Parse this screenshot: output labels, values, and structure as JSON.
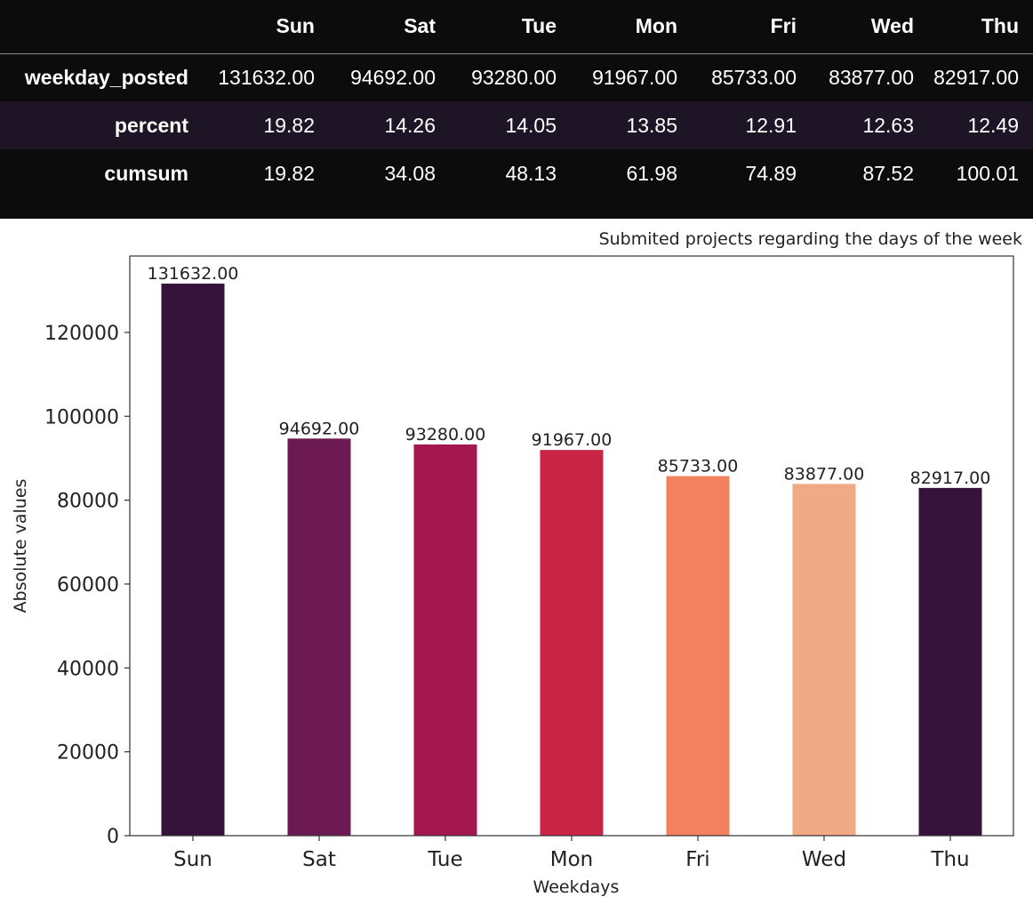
{
  "table": {
    "columns": [
      "Sun",
      "Sat",
      "Tue",
      "Mon",
      "Fri",
      "Wed",
      "Thu"
    ],
    "rows": [
      {
        "label": "weekday_posted",
        "values": [
          "131632.00",
          "94692.00",
          "93280.00",
          "91967.00",
          "85733.00",
          "83877.00",
          "82917.00"
        ]
      },
      {
        "label": "percent",
        "values": [
          "19.82",
          "14.26",
          "14.05",
          "13.85",
          "12.91",
          "12.63",
          "12.49"
        ]
      },
      {
        "label": "cumsum",
        "values": [
          "19.82",
          "34.08",
          "48.13",
          "61.98",
          "74.89",
          "87.52",
          "100.01"
        ]
      }
    ]
  },
  "chart_data": {
    "type": "bar",
    "title": "Submited projects regarding the days of the week",
    "xlabel": "Weekdays",
    "ylabel": "Absolute values",
    "categories": [
      "Sun",
      "Sat",
      "Tue",
      "Mon",
      "Fri",
      "Wed",
      "Thu"
    ],
    "values": [
      131632.0,
      94692.0,
      93280.0,
      91967.0,
      85733.0,
      83877.0,
      82917.0
    ],
    "value_labels": [
      "131632.00",
      "94692.00",
      "93280.00",
      "91967.00",
      "85733.00",
      "83877.00",
      "82917.00"
    ],
    "colors": [
      "#35133b",
      "#6e1a52",
      "#a5174f",
      "#c72446",
      "#f28160",
      "#f0aa85",
      "#35133b"
    ],
    "yticks": [
      0,
      20000,
      40000,
      60000,
      80000,
      100000,
      120000
    ],
    "ylim": [
      0,
      138214
    ],
    "grid": false,
    "legend": "none"
  }
}
